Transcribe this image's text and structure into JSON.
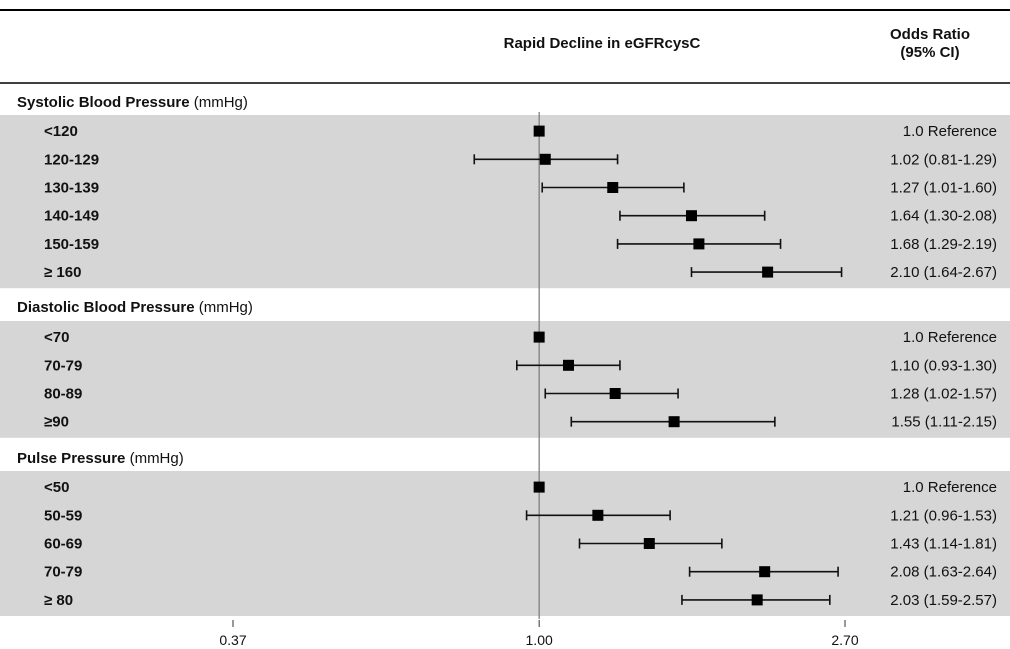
{
  "chart_data": {
    "type": "forest",
    "title": "Rapid Decline in eGFRcysC",
    "or_header": [
      "Odds Ratio",
      "(95% CI)"
    ],
    "x_scale": "log",
    "xlim": [
      0.37,
      2.7
    ],
    "reference_line": 1.0,
    "xticks": [
      {
        "value": 0.37,
        "label": "0.37"
      },
      {
        "value": 1.0,
        "label": "1.00"
      },
      {
        "value": 2.7,
        "label": "2.70"
      }
    ],
    "groups": [
      {
        "name": "Systolic Blood Pressure",
        "unit": " (mmHg)",
        "rows": [
          {
            "label": "<120",
            "or": 1.0,
            "lo": null,
            "hi": null,
            "text": "1.0 Reference"
          },
          {
            "label": "120-129",
            "or": 1.02,
            "lo": 0.81,
            "hi": 1.29,
            "text": "1.02 (0.81-1.29)"
          },
          {
            "label": "130-139",
            "or": 1.27,
            "lo": 1.01,
            "hi": 1.6,
            "text": "1.27 (1.01-1.60)"
          },
          {
            "label": "140-149",
            "or": 1.64,
            "lo": 1.3,
            "hi": 2.08,
            "text": "1.64 (1.30-2.08)"
          },
          {
            "label": "150-159",
            "or": 1.68,
            "lo": 1.29,
            "hi": 2.19,
            "text": "1.68 (1.29-2.19)"
          },
          {
            "label": "≥ 160",
            "or": 2.1,
            "lo": 1.64,
            "hi": 2.67,
            "text": "2.10 (1.64-2.67)"
          }
        ]
      },
      {
        "name": "Diastolic Blood Pressure",
        "unit": " (mmHg)",
        "rows": [
          {
            "label": "<70",
            "or": 1.0,
            "lo": null,
            "hi": null,
            "text": "1.0 Reference"
          },
          {
            "label": "70-79",
            "or": 1.1,
            "lo": 0.93,
            "hi": 1.3,
            "text": "1.10 (0.93-1.30)"
          },
          {
            "label": "80-89",
            "or": 1.28,
            "lo": 1.02,
            "hi": 1.57,
            "text": "1.28 (1.02-1.57)"
          },
          {
            "label": "≥90",
            "or": 1.55,
            "lo": 1.11,
            "hi": 2.15,
            "text": "1.55 (1.11-2.15)"
          }
        ]
      },
      {
        "name": "Pulse Pressure",
        "unit": " (mmHg)",
        "rows": [
          {
            "label": "<50",
            "or": 1.0,
            "lo": null,
            "hi": null,
            "text": "1.0 Reference"
          },
          {
            "label": "50-59",
            "or": 1.21,
            "lo": 0.96,
            "hi": 1.53,
            "text": "1.21 (0.96-1.53)"
          },
          {
            "label": "60-69",
            "or": 1.43,
            "lo": 1.14,
            "hi": 1.81,
            "text": "1.43 (1.14-1.81)"
          },
          {
            "label": "70-79",
            "or": 2.08,
            "lo": 1.63,
            "hi": 2.64,
            "text": "2.08 (1.63-2.64)"
          },
          {
            "label": "≥ 80",
            "or": 2.03,
            "lo": 1.59,
            "hi": 2.57,
            "text": "2.03 (1.59-2.57)"
          }
        ]
      }
    ],
    "colors": {
      "band": "#d6d6d6",
      "marker": "#000000",
      "whisker": "#111111",
      "reference_line": "#777777",
      "rule": "#000000"
    }
  }
}
